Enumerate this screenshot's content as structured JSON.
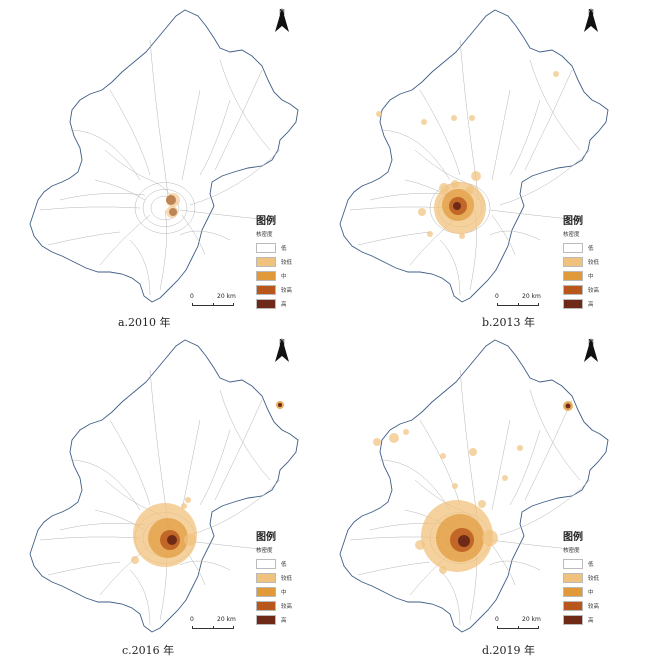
{
  "colors": {
    "low": "#ffffff",
    "mid_low": "#f1c27d",
    "mid": "#e09a3a",
    "mid_high": "#b8561b",
    "high": "#6e2a17",
    "boundary": "#3f5e86",
    "road": "#b5b5b5"
  },
  "north_label": "N",
  "scale": {
    "zero": "0",
    "distance": "20 km"
  },
  "legend": {
    "title": "图例",
    "subtitle": "核密度",
    "levels": [
      {
        "label": "低",
        "color": "#ffffff"
      },
      {
        "label": "较低",
        "color": "#f1c27d"
      },
      {
        "label": "中",
        "color": "#e09a3a"
      },
      {
        "label": "较高",
        "color": "#b8561b"
      },
      {
        "label": "高",
        "color": "#6e2a17"
      }
    ]
  },
  "panels": [
    {
      "caption": "a.2010 年"
    },
    {
      "caption": "b.2013 年"
    },
    {
      "caption": "c.2016 年"
    },
    {
      "caption": "d.2019 年"
    }
  ]
}
